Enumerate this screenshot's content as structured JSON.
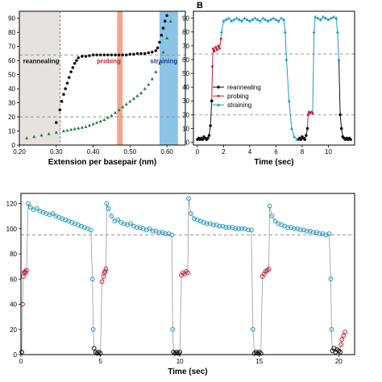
{
  "panel_b_label": "B",
  "colors": {
    "reannealing": "#111111",
    "probing": "#c0203a",
    "straining": "#1a9ac9",
    "green": "#1f7a3a",
    "reannealing_band": "#e6e2e0",
    "probing_band": "#f3a78a",
    "straining_band": "#8cc4e6",
    "ref_line": "#888888"
  },
  "chart_data": [
    {
      "id": "A",
      "type": "scatter",
      "xlabel": "Extension per basepair (nm)",
      "xlim": [
        0.2,
        0.65
      ],
      "ylim": [
        0,
        95
      ],
      "xticks": [
        "0.20",
        "0.30",
        "0.40",
        "0.50",
        "0.60"
      ],
      "yticks": [
        "0",
        "10",
        "20",
        "30",
        "40",
        "50",
        "60",
        "70",
        "80",
        "90"
      ],
      "regions": [
        {
          "label": "reannealing",
          "x0": 0.2,
          "x1": 0.31,
          "color": "#111111"
        },
        {
          "label": "probing",
          "x0": 0.465,
          "x1": 0.48,
          "color": "#c0203a"
        },
        {
          "label": "straining",
          "x0": 0.58,
          "x1": 0.63,
          "color": "#1a3a8a"
        }
      ],
      "ref_lines": [
        20,
        64
      ],
      "series": [
        {
          "style": "black-circles",
          "x": [
            0.3,
            0.31,
            0.315,
            0.32,
            0.325,
            0.33,
            0.335,
            0.34,
            0.345,
            0.35,
            0.355,
            0.36,
            0.37,
            0.38,
            0.39,
            0.4,
            0.41,
            0.42,
            0.43,
            0.44,
            0.45,
            0.46,
            0.47,
            0.48,
            0.49,
            0.5,
            0.51,
            0.52,
            0.53,
            0.54,
            0.55,
            0.56,
            0.57,
            0.575,
            0.58,
            0.585,
            0.59,
            0.595,
            0.6
          ],
          "y": [
            16,
            25,
            31,
            36,
            40,
            44,
            48,
            52,
            55,
            58,
            60,
            62,
            63,
            63,
            63.5,
            64,
            64,
            64,
            64,
            64,
            64,
            64,
            64,
            64,
            64,
            64.5,
            64.5,
            65,
            65,
            65,
            65.5,
            66,
            67,
            69,
            73,
            78,
            83,
            88,
            92
          ]
        },
        {
          "style": "green-triangles",
          "x": [
            0.22,
            0.24,
            0.26,
            0.28,
            0.3,
            0.32,
            0.33,
            0.34,
            0.35,
            0.36,
            0.37,
            0.38,
            0.39,
            0.4,
            0.41,
            0.42,
            0.43,
            0.44,
            0.45,
            0.46,
            0.47,
            0.48,
            0.49,
            0.5,
            0.51,
            0.52,
            0.53,
            0.54,
            0.55,
            0.56,
            0.57,
            0.58,
            0.59,
            0.6,
            0.61
          ],
          "y": [
            5,
            6,
            7,
            8,
            9,
            10,
            10.5,
            11,
            11.5,
            12,
            12.5,
            13,
            14,
            15,
            16,
            17,
            18,
            19.5,
            21,
            23,
            25,
            27,
            29,
            31,
            33,
            35,
            37,
            40,
            43,
            47,
            52,
            58,
            66,
            76,
            88
          ]
        }
      ]
    },
    {
      "id": "B",
      "type": "line",
      "xlabel": "Time (sec)",
      "xlim": [
        -0.3,
        12
      ],
      "ylim": [
        -2,
        95
      ],
      "xticks": [
        "0",
        "2",
        "4",
        "6",
        "8",
        "10"
      ],
      "yticks": [
        "0",
        "10",
        "20",
        "30",
        "40",
        "50",
        "60",
        "70",
        "80",
        "90"
      ],
      "ref_lines": [
        20,
        64
      ],
      "legend": "center-left",
      "series": [
        {
          "name": "reannealing",
          "x": [
            0.0,
            0.1,
            0.2,
            0.3,
            0.4,
            0.5,
            0.6,
            0.7,
            0.8,
            0.9,
            1.0,
            1.1,
            7.7,
            7.8,
            7.9,
            8.0,
            8.1,
            8.2,
            8.3,
            8.4,
            10.9,
            11.0,
            11.1,
            11.2,
            11.3,
            11.4,
            11.5,
            11.6,
            11.7
          ],
          "y": [
            2,
            3,
            2,
            3,
            2,
            4,
            3,
            2,
            3,
            5,
            12,
            30,
            2,
            3,
            2,
            4,
            3,
            2,
            5,
            10,
            20,
            10,
            4,
            3,
            2,
            3,
            2,
            3,
            2
          ]
        },
        {
          "name": "probing",
          "x": [
            1.15,
            1.2,
            1.3,
            1.4,
            1.5,
            1.6,
            1.7,
            1.8,
            8.45,
            8.5,
            8.6,
            8.7,
            8.8
          ],
          "y": [
            55,
            68,
            66,
            69,
            67,
            70,
            68,
            75,
            20,
            22,
            21,
            22,
            21
          ]
        },
        {
          "name": "straining",
          "x": [
            1.85,
            2.0,
            2.2,
            2.4,
            2.6,
            2.8,
            3.0,
            3.2,
            3.4,
            3.6,
            3.8,
            4.0,
            4.2,
            4.4,
            4.6,
            4.8,
            5.0,
            5.2,
            5.4,
            5.6,
            5.8,
            6.0,
            6.2,
            6.4,
            6.6,
            6.7,
            6.8,
            7.0,
            7.2,
            7.4,
            7.6,
            8.9,
            9.0,
            9.2,
            9.4,
            9.6,
            9.8,
            10.0,
            10.2,
            10.4,
            10.6,
            10.7,
            10.8
          ],
          "y": [
            80,
            88,
            89,
            90,
            88,
            89,
            90,
            89,
            88,
            90,
            89,
            88,
            89,
            90,
            89,
            88,
            90,
            89,
            88,
            89,
            90,
            89,
            88,
            90,
            89,
            80,
            60,
            30,
            10,
            4,
            2,
            80,
            91,
            90,
            89,
            91,
            90,
            89,
            90,
            91,
            90,
            80,
            60
          ]
        }
      ]
    },
    {
      "id": "C",
      "type": "scatter",
      "xlabel": "Time (sec)",
      "xlim": [
        0,
        21
      ],
      "ylim": [
        0,
        128
      ],
      "xticks": [
        "0",
        "5",
        "10",
        "15",
        "20"
      ],
      "yticks": [
        "0",
        "20",
        "40",
        "60",
        "80",
        "100",
        "120"
      ],
      "ref_lines": [
        95
      ],
      "series": [
        {
          "name": "reannealing",
          "x": [
            0.05,
            4.6,
            4.7,
            4.8,
            4.9,
            5.0,
            9.6,
            9.7,
            9.8,
            9.9,
            10.0,
            14.7,
            14.8,
            14.9,
            15.0,
            15.1,
            19.6,
            19.7,
            19.8,
            19.9,
            20.0,
            20.1
          ],
          "y": [
            2,
            5,
            2,
            1,
            2,
            1,
            2,
            1,
            2,
            1,
            2,
            1,
            2,
            1,
            2,
            1,
            3,
            5,
            2,
            4,
            3,
            2
          ]
        },
        {
          "name": "probing",
          "x": [
            0.1,
            0.15,
            0.2,
            0.25,
            0.3,
            0.35,
            5.1,
            5.2,
            5.25,
            5.3,
            5.35,
            10.1,
            10.2,
            10.3,
            10.4,
            10.5,
            15.2,
            15.3,
            15.4,
            15.5,
            15.6,
            20.15,
            20.2,
            20.3,
            20.4
          ],
          "y": [
            40,
            62,
            65,
            66,
            65,
            67,
            58,
            62,
            65,
            66,
            68,
            63,
            65,
            64,
            66,
            65,
            62,
            64,
            66,
            67,
            68,
            8,
            12,
            15,
            18
          ]
        },
        {
          "name": "straining",
          "x": [
            0.45,
            0.6,
            0.8,
            1.0,
            1.2,
            1.4,
            1.6,
            1.8,
            2.0,
            2.2,
            2.4,
            2.6,
            2.8,
            3.0,
            3.2,
            3.4,
            3.6,
            3.8,
            4.0,
            4.2,
            4.4,
            4.5,
            4.55,
            5.4,
            5.5,
            5.7,
            5.9,
            6.1,
            6.3,
            6.5,
            6.7,
            6.9,
            7.1,
            7.3,
            7.5,
            7.7,
            7.9,
            8.1,
            8.3,
            8.5,
            8.7,
            8.9,
            9.1,
            9.3,
            9.5,
            9.55,
            10.55,
            10.7,
            10.9,
            11.1,
            11.3,
            11.5,
            11.7,
            11.9,
            12.1,
            12.3,
            12.5,
            12.7,
            12.9,
            13.1,
            13.3,
            13.5,
            13.7,
            13.9,
            14.1,
            14.3,
            14.5,
            14.6,
            15.65,
            15.8,
            16.0,
            16.2,
            16.4,
            16.6,
            16.8,
            17.0,
            17.2,
            17.4,
            17.6,
            17.8,
            18.0,
            18.2,
            18.4,
            18.6,
            18.8,
            19.0,
            19.2,
            19.4,
            19.5,
            19.55
          ],
          "y": [
            120,
            117,
            115,
            116,
            114,
            113,
            112,
            111,
            112,
            110,
            109,
            108,
            107,
            106,
            105,
            104,
            103,
            102,
            101,
            100,
            99,
            60,
            20,
            120,
            116,
            110,
            106,
            107,
            105,
            104,
            103,
            104,
            102,
            101,
            101,
            100,
            99,
            100,
            98,
            98,
            97,
            97,
            96,
            96,
            95,
            20,
            124,
            112,
            108,
            107,
            106,
            105,
            104,
            104,
            103,
            103,
            102,
            102,
            101,
            101,
            101,
            100,
            100,
            100,
            100,
            99,
            99,
            20,
            118,
            110,
            106,
            104,
            103,
            102,
            101,
            101,
            100,
            100,
            99,
            99,
            98,
            98,
            97,
            97,
            96,
            96,
            95,
            96,
            60,
            20
          ]
        }
      ]
    }
  ]
}
